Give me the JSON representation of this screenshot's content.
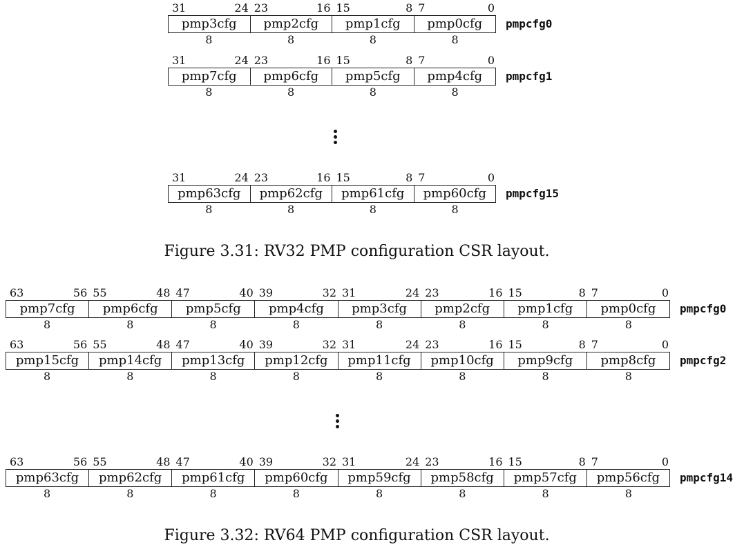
{
  "rv32": {
    "bit_labels": [
      "31",
      "24",
      "23",
      "16",
      "15",
      "8",
      "7",
      "0"
    ],
    "registers": [
      {
        "name": "pmpcfg0",
        "fields": [
          "pmp3cfg",
          "pmp2cfg",
          "pmp1cfg",
          "pmp0cfg"
        ],
        "widths": [
          "8",
          "8",
          "8",
          "8"
        ]
      },
      {
        "name": "pmpcfg1",
        "fields": [
          "pmp7cfg",
          "pmp6cfg",
          "pmp5cfg",
          "pmp4cfg"
        ],
        "widths": [
          "8",
          "8",
          "8",
          "8"
        ]
      },
      {
        "name": "pmpcfg15",
        "fields": [
          "pmp63cfg",
          "pmp62cfg",
          "pmp61cfg",
          "pmp60cfg"
        ],
        "widths": [
          "8",
          "8",
          "8",
          "8"
        ]
      }
    ],
    "caption": "Figure 3.31: RV32 PMP configuration CSR layout."
  },
  "rv64": {
    "bit_labels": [
      "63",
      "56",
      "55",
      "48",
      "47",
      "40",
      "39",
      "32",
      "31",
      "24",
      "23",
      "16",
      "15",
      "8",
      "7",
      "0"
    ],
    "registers": [
      {
        "name": "pmpcfg0",
        "fields": [
          "pmp7cfg",
          "pmp6cfg",
          "pmp5cfg",
          "pmp4cfg",
          "pmp3cfg",
          "pmp2cfg",
          "pmp1cfg",
          "pmp0cfg"
        ],
        "widths": [
          "8",
          "8",
          "8",
          "8",
          "8",
          "8",
          "8",
          "8"
        ]
      },
      {
        "name": "pmpcfg2",
        "fields": [
          "pmp15cfg",
          "pmp14cfg",
          "pmp13cfg",
          "pmp12cfg",
          "pmp11cfg",
          "pmp10cfg",
          "pmp9cfg",
          "pmp8cfg"
        ],
        "widths": [
          "8",
          "8",
          "8",
          "8",
          "8",
          "8",
          "8",
          "8"
        ]
      },
      {
        "name": "pmpcfg14",
        "fields": [
          "pmp63cfg",
          "pmp62cfg",
          "pmp61cfg",
          "pmp60cfg",
          "pmp59cfg",
          "pmp58cfg",
          "pmp57cfg",
          "pmp56cfg"
        ],
        "widths": [
          "8",
          "8",
          "8",
          "8",
          "8",
          "8",
          "8",
          "8"
        ]
      }
    ],
    "caption": "Figure 3.32: RV64 PMP configuration CSR layout."
  }
}
